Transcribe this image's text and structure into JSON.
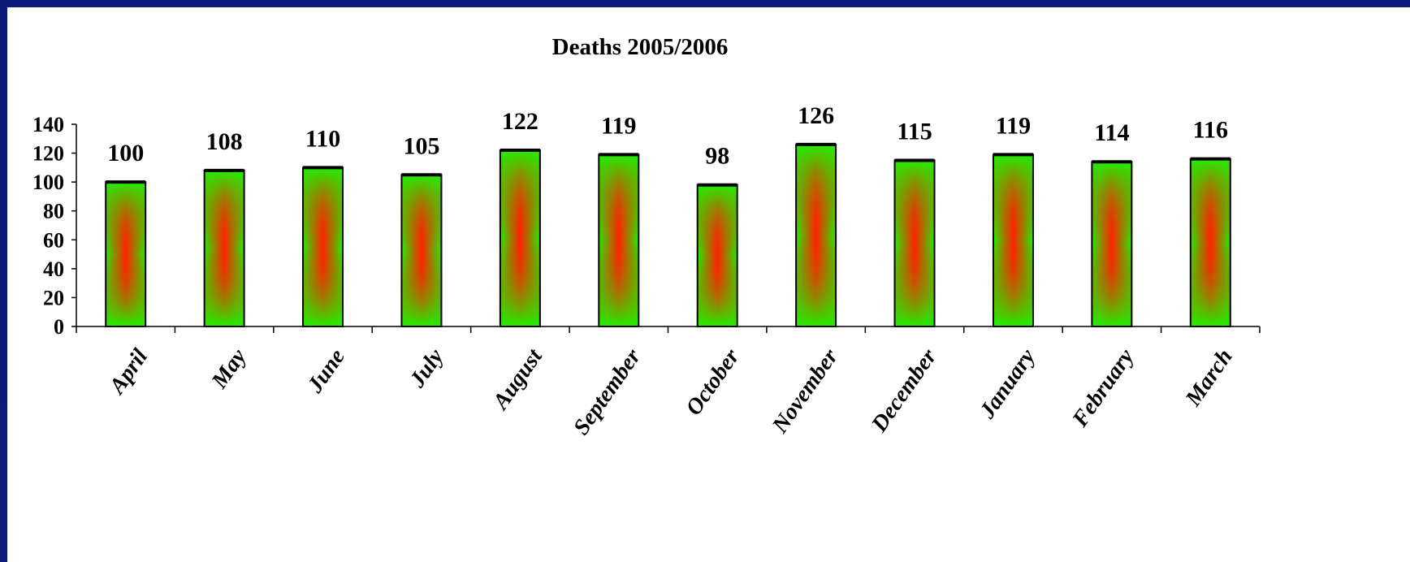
{
  "chart_data": {
    "type": "bar",
    "title": "Deaths 2005/2006",
    "xlabel": "",
    "ylabel": "",
    "categories": [
      "April",
      "May",
      "June",
      "July",
      "August",
      "September",
      "October",
      "November",
      "December",
      "January",
      "February",
      "March"
    ],
    "values": [
      100,
      108,
      110,
      105,
      122,
      119,
      98,
      126,
      115,
      119,
      114,
      116
    ],
    "ylim": [
      0,
      140
    ],
    "yticks": [
      "0",
      "20",
      "40",
      "60",
      "80",
      "100",
      "120",
      "140"
    ],
    "grid": false,
    "legend": "none",
    "bar_fill": {
      "edge": "#22ee00",
      "center": "#ff2200",
      "outline": "#000000"
    },
    "frame_color": "#0a1a78"
  }
}
